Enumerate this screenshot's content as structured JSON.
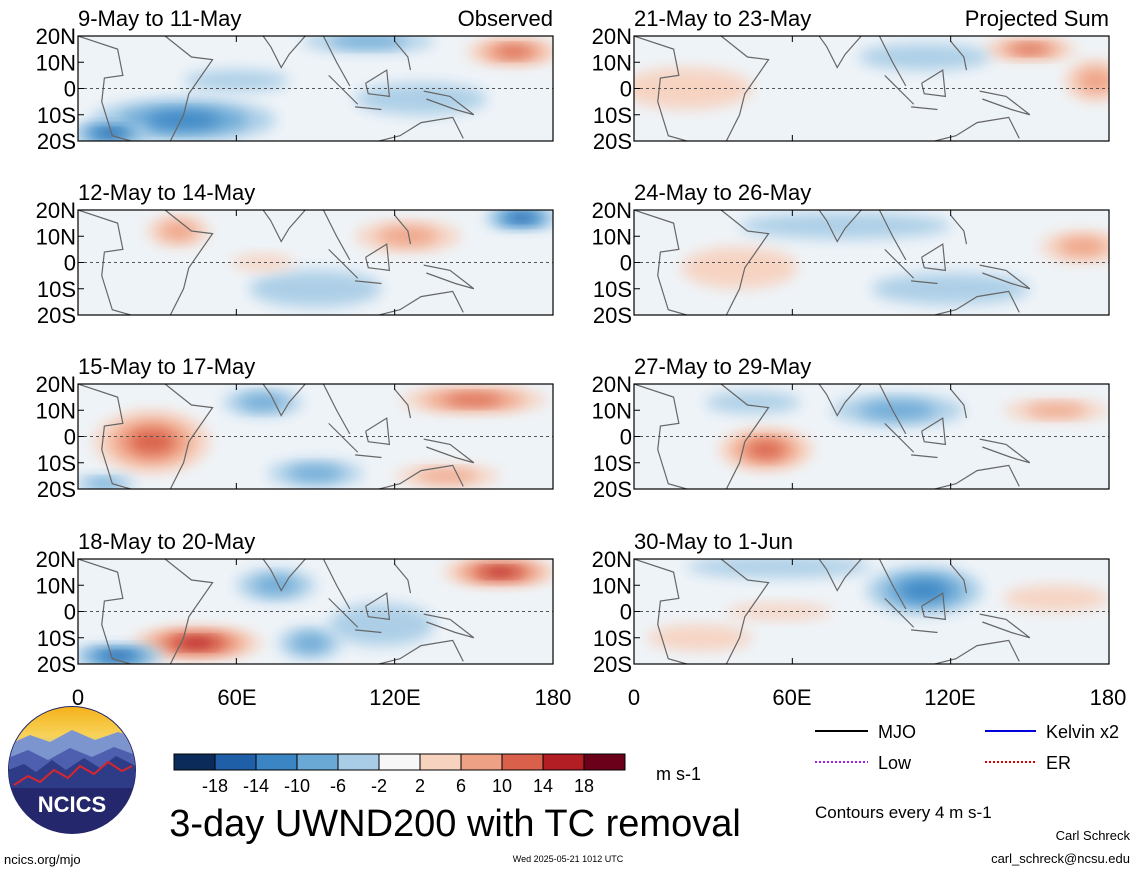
{
  "chart_data": {
    "type": "heatmap",
    "variable": "UWND200",
    "title": "3-day UWND200 with TC removal",
    "units": "m s-1",
    "contour_note": "Contours every 4 m s-1",
    "lat_ticks": [
      "20N",
      "10N",
      "0",
      "10S",
      "20S"
    ],
    "lon_ticks": [
      "0",
      "60E",
      "120E",
      "180"
    ],
    "lat_range": [
      -20,
      20
    ],
    "lon_range": [
      0,
      180
    ],
    "colorbar": {
      "levels": [
        "-18",
        "-14",
        "-10",
        "-6",
        "-2",
        "2",
        "6",
        "10",
        "14",
        "18"
      ],
      "colors": [
        "#0b2b5a",
        "#1f5fa8",
        "#3b85c4",
        "#6aa8d6",
        "#a9cde6",
        "#f7f7f7",
        "#f7d2bf",
        "#eea184",
        "#d9604a",
        "#b21e24",
        "#6b001a"
      ]
    },
    "legend": [
      {
        "label": "MJO",
        "color": "#000000",
        "style": "solid"
      },
      {
        "label": "Kelvin x2",
        "color": "#0000dd",
        "style": "solid"
      },
      {
        "label": "Low",
        "color": "#a020f0",
        "style": "dotted"
      },
      {
        "label": "ER",
        "color": "#dd0000",
        "style": "dotted"
      }
    ],
    "panels": [
      {
        "title": "9-May to 11-May",
        "tag": "Observed",
        "blobs": [
          {
            "lon": 165,
            "lat": 14,
            "rx": 18,
            "ry": 5,
            "v": 12
          },
          {
            "lon": 40,
            "lat": -12,
            "rx": 35,
            "ry": 8,
            "v": -12
          },
          {
            "lon": 12,
            "lat": -17,
            "rx": 15,
            "ry": 4,
            "v": -18
          },
          {
            "lon": 110,
            "lat": 18,
            "rx": 25,
            "ry": 4,
            "v": -8
          },
          {
            "lon": 60,
            "lat": 3,
            "rx": 20,
            "ry": 4,
            "v": -6
          },
          {
            "lon": 130,
            "lat": -4,
            "rx": 25,
            "ry": 6,
            "v": -5
          }
        ]
      },
      {
        "title": "12-May to 14-May",
        "blobs": [
          {
            "lon": 38,
            "lat": 12,
            "rx": 12,
            "ry": 6,
            "v": 9
          },
          {
            "lon": 125,
            "lat": 10,
            "rx": 20,
            "ry": 6,
            "v": 7
          },
          {
            "lon": 168,
            "lat": 17,
            "rx": 14,
            "ry": 4,
            "v": -18
          },
          {
            "lon": 90,
            "lat": -10,
            "rx": 25,
            "ry": 7,
            "v": -5
          },
          {
            "lon": 70,
            "lat": 0,
            "rx": 12,
            "ry": 3,
            "v": 5
          }
        ]
      },
      {
        "title": "15-May to 17-May",
        "blobs": [
          {
            "lon": 28,
            "lat": -2,
            "rx": 22,
            "ry": 12,
            "v": 12
          },
          {
            "lon": 150,
            "lat": 14,
            "rx": 28,
            "ry": 5,
            "v": 12
          },
          {
            "lon": 70,
            "lat": 13,
            "rx": 15,
            "ry": 5,
            "v": -8
          },
          {
            "lon": 90,
            "lat": -14,
            "rx": 18,
            "ry": 5,
            "v": -7
          },
          {
            "lon": 140,
            "lat": -15,
            "rx": 20,
            "ry": 4,
            "v": 8
          },
          {
            "lon": 10,
            "lat": -18,
            "rx": 12,
            "ry": 3,
            "v": -10
          }
        ]
      },
      {
        "title": "18-May to 20-May",
        "blobs": [
          {
            "lon": 45,
            "lat": -12,
            "rx": 25,
            "ry": 6,
            "v": 16
          },
          {
            "lon": 160,
            "lat": 15,
            "rx": 22,
            "ry": 5,
            "v": 16
          },
          {
            "lon": 15,
            "lat": -17,
            "rx": 18,
            "ry": 4,
            "v": -16
          },
          {
            "lon": 75,
            "lat": 10,
            "rx": 15,
            "ry": 6,
            "v": -9
          },
          {
            "lon": 115,
            "lat": -5,
            "rx": 20,
            "ry": 8,
            "v": -5
          },
          {
            "lon": 88,
            "lat": -12,
            "rx": 12,
            "ry": 6,
            "v": -10
          }
        ]
      },
      {
        "title": "21-May to 23-May",
        "tag": "Projected Sum",
        "blobs": [
          {
            "lon": 150,
            "lat": 15,
            "rx": 18,
            "ry": 4,
            "v": 12
          },
          {
            "lon": 175,
            "lat": 3,
            "rx": 12,
            "ry": 8,
            "v": 9
          },
          {
            "lon": 20,
            "lat": 0,
            "rx": 25,
            "ry": 8,
            "v": 6
          },
          {
            "lon": 110,
            "lat": 12,
            "rx": 25,
            "ry": 5,
            "v": -4
          }
        ]
      },
      {
        "title": "24-May to 26-May",
        "blobs": [
          {
            "lon": 170,
            "lat": 6,
            "rx": 16,
            "ry": 6,
            "v": 10
          },
          {
            "lon": 40,
            "lat": -2,
            "rx": 22,
            "ry": 8,
            "v": 5
          },
          {
            "lon": 80,
            "lat": 14,
            "rx": 40,
            "ry": 5,
            "v": -6
          },
          {
            "lon": 120,
            "lat": -10,
            "rx": 30,
            "ry": 6,
            "v": -3
          }
        ]
      },
      {
        "title": "27-May to 29-May",
        "blobs": [
          {
            "lon": 50,
            "lat": -5,
            "rx": 18,
            "ry": 8,
            "v": 11
          },
          {
            "lon": 100,
            "lat": 10,
            "rx": 25,
            "ry": 6,
            "v": -8
          },
          {
            "lon": 160,
            "lat": 10,
            "rx": 20,
            "ry": 4,
            "v": 7
          },
          {
            "lon": 45,
            "lat": 13,
            "rx": 18,
            "ry": 4,
            "v": -5
          }
        ]
      },
      {
        "title": "30-May to 1-Jun",
        "blobs": [
          {
            "lon": 110,
            "lat": 8,
            "rx": 22,
            "ry": 9,
            "v": -11
          },
          {
            "lon": 55,
            "lat": 17,
            "rx": 35,
            "ry": 4,
            "v": -5
          },
          {
            "lon": 55,
            "lat": 0,
            "rx": 20,
            "ry": 3,
            "v": 5
          },
          {
            "lon": 160,
            "lat": 5,
            "rx": 20,
            "ry": 5,
            "v": 5
          },
          {
            "lon": 25,
            "lat": -10,
            "rx": 20,
            "ry": 5,
            "v": 4
          }
        ]
      }
    ]
  },
  "logo": {
    "text": "NCICS"
  },
  "footer": {
    "left": "ncics.org/mjo",
    "center": "Wed 2025-05-21 1012 UTC",
    "author": "Carl Schreck",
    "email": "carl_schreck@ncsu.edu"
  }
}
